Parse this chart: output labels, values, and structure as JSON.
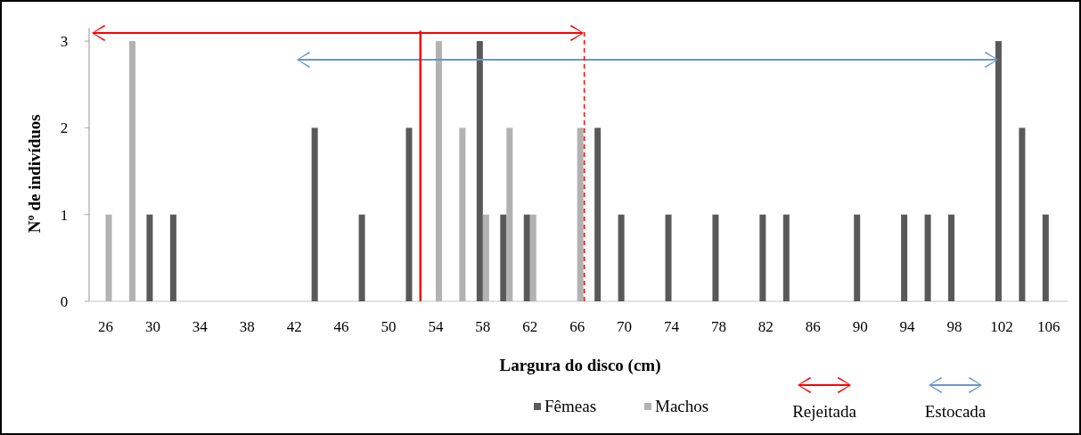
{
  "chart_data": {
    "type": "bar",
    "xlabel": "Largura do disco (cm)",
    "ylabel": "Nº de indivíduos",
    "xlim": [
      24.6,
      107.6
    ],
    "xticks": [
      26,
      30,
      34,
      38,
      42,
      46,
      50,
      54,
      58,
      62,
      66,
      70,
      74,
      78,
      82,
      86,
      90,
      94,
      98,
      102,
      106
    ],
    "ylim": [
      0,
      3.15
    ],
    "yticks": [
      0,
      1,
      2,
      3
    ],
    "series": [
      {
        "name": "Fêmeas",
        "color": "#595959",
        "x": [
          30,
          32,
          44,
          48,
          52,
          58,
          60,
          62,
          68,
          70,
          74,
          78,
          82,
          84,
          90,
          94,
          96,
          98,
          102,
          104,
          106
        ],
        "values": [
          1,
          1,
          2,
          1,
          2,
          3,
          1,
          1,
          2,
          1,
          1,
          1,
          1,
          1,
          1,
          1,
          1,
          1,
          3,
          2,
          1
        ]
      },
      {
        "name": "Machos",
        "color": "#b2b2b2",
        "x": [
          26,
          28,
          54,
          56,
          58,
          60,
          62,
          66
        ],
        "values": [
          1,
          3,
          3,
          2,
          1,
          2,
          1,
          2
        ]
      }
    ],
    "annotations": [
      "Rejeitada",
      "Estocada"
    ],
    "ref_lines": [
      {
        "axis": "x",
        "value": 52.7,
        "color": "#ff0000",
        "line_style": "solid"
      },
      {
        "axis": "x",
        "value": 66.6,
        "color": "#ff0000",
        "line_style": "dashed"
      }
    ],
    "legend": "bottom",
    "grid": false
  }
}
